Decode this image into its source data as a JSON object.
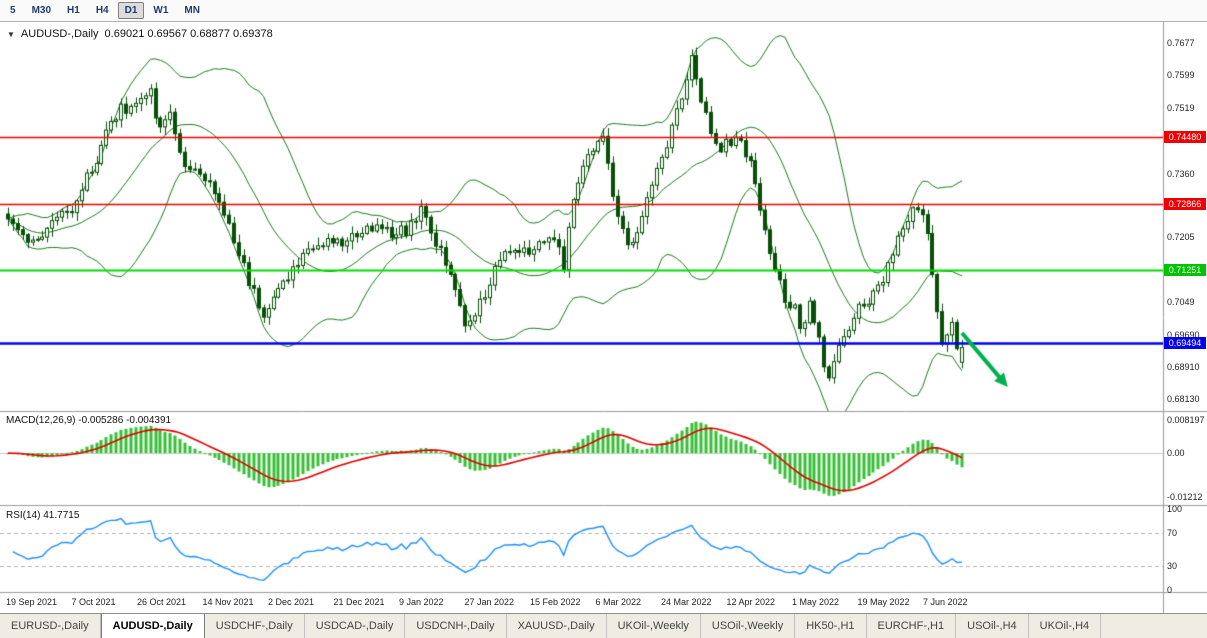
{
  "toolbar": {
    "timeframes": [
      "5",
      "M30",
      "H1",
      "H4",
      "D1",
      "W1",
      "MN"
    ],
    "selected": "D1"
  },
  "chart_header": {
    "dropdown_icon": "▼",
    "symbol": "AUDUSD-,Daily",
    "ohlc_text": "0.69021 0.69567 0.68877 0.69378"
  },
  "price_axis": {
    "ticks": [
      {
        "label": "0.7677",
        "price": 0.7677
      },
      {
        "label": "0.7599",
        "price": 0.7599
      },
      {
        "label": "0.7519",
        "price": 0.7519
      },
      {
        "label": "0.7360",
        "price": 0.736
      },
      {
        "label": "0.7205",
        "price": 0.7205
      },
      {
        "label": "0.7049",
        "price": 0.7049
      },
      {
        "label": "0.69690",
        "price": 0.6969
      },
      {
        "label": "0.68910",
        "price": 0.6891
      },
      {
        "label": "0.68130",
        "price": 0.6813
      }
    ],
    "badges": [
      {
        "label": "0.74480",
        "price": 0.7448,
        "color": "#f00000"
      },
      {
        "label": "0.72866",
        "price": 0.72866,
        "color": "#f00000"
      },
      {
        "label": "0.71251",
        "price": 0.71251,
        "color": "#00c400"
      },
      {
        "label": "0.69494",
        "price": 0.69494,
        "color": "#0000ee"
      }
    ]
  },
  "macd_panel": {
    "label": "MACD(12,26,9) -0.005286 -0.004391",
    "axis_values": [
      "0.008197",
      "0.00",
      "-0.01212"
    ]
  },
  "rsi_panel": {
    "label": "RSI(14) 41.7715",
    "axis_values": [
      "100",
      "70",
      "30",
      "0"
    ]
  },
  "x_axis": {
    "dates": [
      "19 Sep 2021",
      "7 Oct 2021",
      "26 Oct 2021",
      "14 Nov 2021",
      "2 Dec 2021",
      "21 Dec 2021",
      "9 Jan 2022",
      "27 Jan 2022",
      "15 Feb 2022",
      "6 Mar 2022",
      "24 Mar 2022",
      "12 Apr 2022",
      "1 May 2022",
      "19 May 2022",
      "7 Jun 2022"
    ]
  },
  "tabs": [
    "EURUSD-,Daily",
    "AUDUSD-,Daily",
    "USDCHF-,Daily",
    "USDCAD-,Daily",
    "USDCNH-,Daily",
    "XAUUSD-,Daily",
    "UKOil-,Weekly",
    "USOil-,Weekly",
    "HK50-,H1",
    "EURCHF-,H1",
    "USOil-,H4",
    "UKOil-,H4"
  ],
  "active_tab": "AUDUSD-,Daily",
  "chart_data": {
    "type": "candlestick",
    "symbol": "AUDUSD",
    "timeframe": "Daily",
    "candles": 195,
    "price_range": [
      0.6813,
      0.7677
    ],
    "ohlc_current": {
      "open": 0.69021,
      "high": 0.69567,
      "low": 0.68877,
      "close": 0.69378
    },
    "anchors": [
      [
        0.002,
        0.724
      ],
      [
        0.023,
        0.7187
      ],
      [
        0.044,
        0.7235
      ],
      [
        0.07,
        0.7284
      ],
      [
        0.096,
        0.7417
      ],
      [
        0.117,
        0.7514
      ],
      [
        0.138,
        0.7539
      ],
      [
        0.149,
        0.7563
      ],
      [
        0.159,
        0.7466
      ],
      [
        0.17,
        0.7502
      ],
      [
        0.186,
        0.7381
      ],
      [
        0.201,
        0.7357
      ],
      [
        0.217,
        0.732
      ],
      [
        0.233,
        0.7223
      ],
      [
        0.248,
        0.7126
      ],
      [
        0.259,
        0.7065
      ],
      [
        0.269,
        0.7017
      ],
      [
        0.28,
        0.7053
      ],
      [
        0.296,
        0.7114
      ],
      [
        0.306,
        0.7162
      ],
      [
        0.322,
        0.7187
      ],
      [
        0.338,
        0.7199
      ],
      [
        0.353,
        0.7187
      ],
      [
        0.369,
        0.7223
      ],
      [
        0.385,
        0.7235
      ],
      [
        0.4,
        0.7211
      ],
      [
        0.421,
        0.7223
      ],
      [
        0.432,
        0.7277
      ],
      [
        0.453,
        0.7175
      ],
      [
        0.469,
        0.7078
      ],
      [
        0.479,
        0.7005
      ],
      [
        0.49,
        0.7017
      ],
      [
        0.505,
        0.7102
      ],
      [
        0.521,
        0.7162
      ],
      [
        0.537,
        0.7174
      ],
      [
        0.558,
        0.7187
      ],
      [
        0.573,
        0.7211
      ],
      [
        0.582,
        0.7131
      ],
      [
        0.589,
        0.7247
      ],
      [
        0.6,
        0.7369
      ],
      [
        0.615,
        0.743
      ],
      [
        0.624,
        0.7442
      ],
      [
        0.636,
        0.7296
      ],
      [
        0.652,
        0.7175
      ],
      [
        0.668,
        0.7284
      ],
      [
        0.683,
        0.7393
      ],
      [
        0.692,
        0.7442
      ],
      [
        0.702,
        0.7514
      ],
      [
        0.713,
        0.7611
      ],
      [
        0.718,
        0.765
      ],
      [
        0.725,
        0.7551
      ],
      [
        0.736,
        0.7466
      ],
      [
        0.746,
        0.7418
      ],
      [
        0.757,
        0.7442
      ],
      [
        0.767,
        0.7454
      ],
      [
        0.783,
        0.7344
      ],
      [
        0.794,
        0.7223
      ],
      [
        0.804,
        0.7126
      ],
      [
        0.814,
        0.7053
      ],
      [
        0.825,
        0.703
      ],
      [
        0.832,
        0.6956
      ],
      [
        0.839,
        0.7053
      ],
      [
        0.851,
        0.6944
      ],
      [
        0.86,
        0.6871
      ],
      [
        0.87,
        0.6932
      ],
      [
        0.881,
        0.698
      ],
      [
        0.891,
        0.7029
      ],
      [
        0.904,
        0.7053
      ],
      [
        0.914,
        0.7078
      ],
      [
        0.922,
        0.7126
      ],
      [
        0.933,
        0.7223
      ],
      [
        0.951,
        0.7277
      ],
      [
        0.961,
        0.7235
      ],
      [
        0.968,
        0.715
      ],
      [
        0.977,
        0.698
      ],
      [
        0.982,
        0.6895
      ],
      [
        0.987,
        0.703
      ],
      [
        0.992,
        0.6944
      ],
      [
        1.0,
        0.6938
      ]
    ],
    "horizontal_lines": [
      {
        "price": 0.7448,
        "color": "#f00000",
        "width": 1.5
      },
      {
        "price": 0.72866,
        "color": "#f00000",
        "width": 1.5
      },
      {
        "price": 0.71251,
        "color": "#00dd00",
        "width": 2
      },
      {
        "price": 0.69494,
        "color": "#0000ee",
        "width": 2.5
      }
    ],
    "indicators": {
      "bollinger": {
        "period": 20,
        "deviation": 2,
        "color": "#1d7a1d"
      },
      "macd": {
        "fast": 12,
        "slow": 26,
        "signal": 9,
        "current_macd": -0.005286,
        "current_signal": -0.004391,
        "histogram_color": "#35c135",
        "signal_color": "#e00000",
        "range": [
          -0.01212,
          0.008197
        ]
      },
      "rsi": {
        "period": 14,
        "current": 41.7715,
        "color": "#1E90FF",
        "levels": [
          70,
          30
        ],
        "range": [
          0,
          100
        ]
      }
    },
    "annotations": [
      {
        "type": "arrow",
        "from_frac": 1.0,
        "from_price": 0.6973,
        "to_frac": 1.048,
        "to_price": 0.6842,
        "color": "#00b050"
      }
    ],
    "candle_colors": {
      "bull_fill": "#ffffff",
      "bear_fill": "#084f08",
      "outline": "#084f08"
    }
  }
}
